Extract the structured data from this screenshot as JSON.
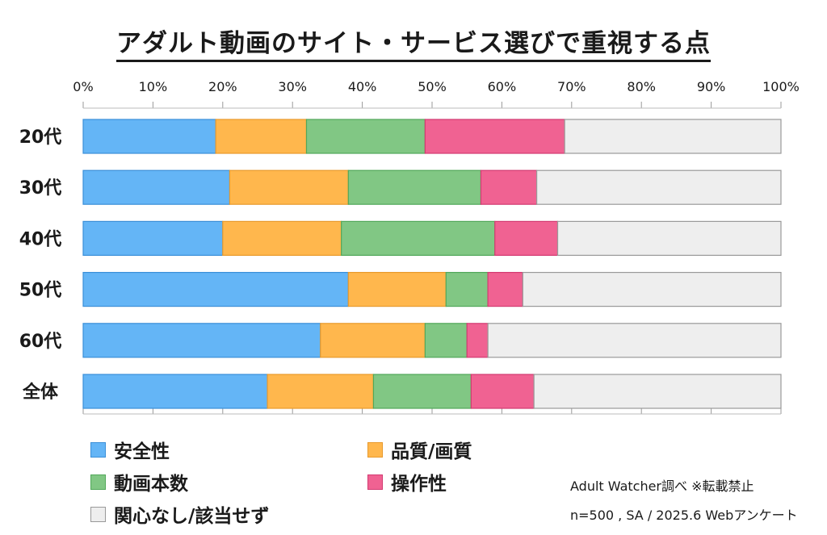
{
  "title": "アダルト動画のサイト・サービス選びで重視する点",
  "chart_data": {
    "type": "bar",
    "orientation": "horizontal",
    "stacked": true,
    "xlim": [
      0,
      100
    ],
    "xticks": [
      "0%",
      "10%",
      "20%",
      "30%",
      "40%",
      "50%",
      "60%",
      "70%",
      "80%",
      "90%",
      "100%"
    ],
    "grid": false,
    "legend_position": "bottom",
    "categories": [
      "20代",
      "30代",
      "40代",
      "50代",
      "60代",
      "全体"
    ],
    "series": [
      {
        "name": "安全性",
        "color": "#64b5f6",
        "stroke": "#3b8fd8",
        "values": [
          19,
          21,
          20,
          38,
          34,
          26.4
        ]
      },
      {
        "name": "品質/画質",
        "color": "#ffb74d",
        "stroke": "#e89a2c",
        "values": [
          13,
          17,
          17,
          14,
          15,
          15.2
        ]
      },
      {
        "name": "動画本数",
        "color": "#81c784",
        "stroke": "#52a85a",
        "values": [
          17,
          19,
          22,
          6,
          6,
          14.0
        ]
      },
      {
        "name": "操作性",
        "color": "#f06292",
        "stroke": "#d33b72",
        "values": [
          20,
          8,
          9,
          5,
          3,
          9.0
        ]
      },
      {
        "name": "関心なし/該当せず",
        "color": "#eeeeee",
        "stroke": "#999999",
        "values": [
          31,
          35,
          32,
          37,
          42,
          35.4
        ]
      }
    ]
  },
  "notes": {
    "source": "Adult Watcher調べ ※転載禁止",
    "sample": "n=500 , SA / 2025.6 Webアンケート"
  }
}
